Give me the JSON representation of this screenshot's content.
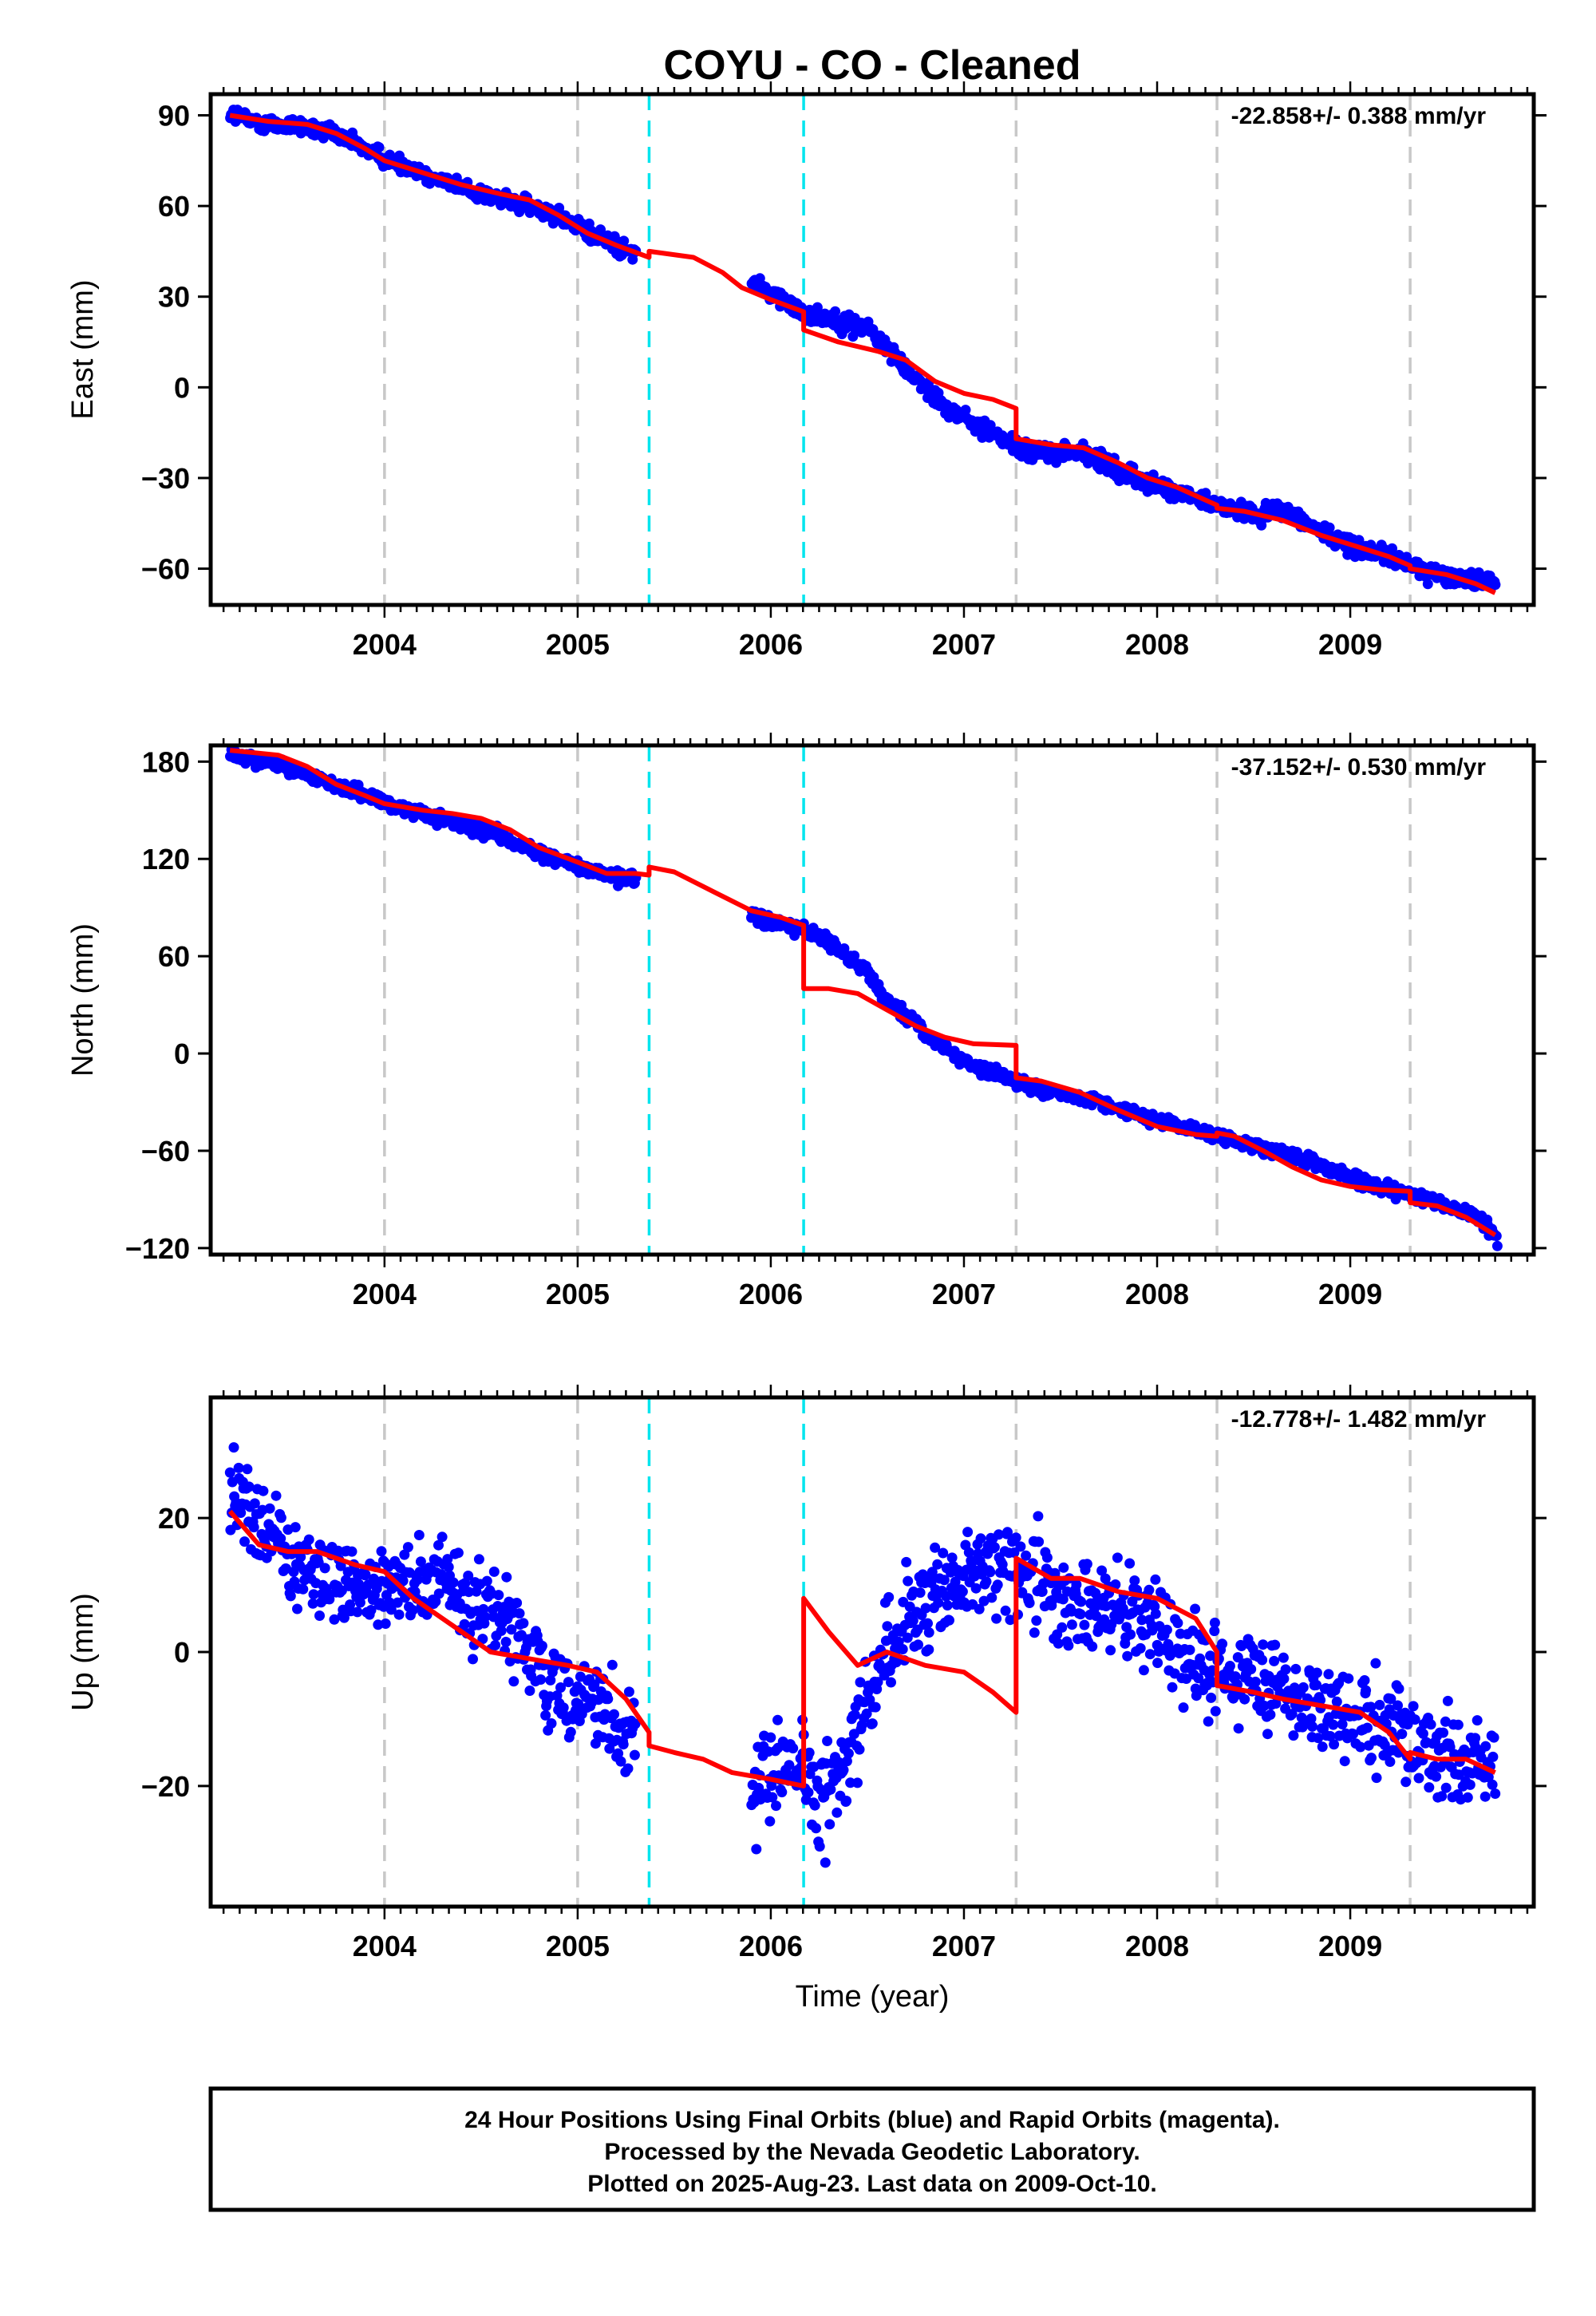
{
  "chart_data": {
    "title": "COYU  - CO - Cleaned",
    "type": "scatter",
    "xlabel": "Time (year)",
    "xlim": [
      2003.1,
      2009.95
    ],
    "x_ticks": [
      "2004",
      "2005",
      "2006",
      "2007",
      "2008",
      "2009"
    ],
    "grey_dashed_lines": [
      2004.0,
      2005.0,
      2007.27,
      2008.31,
      2009.31
    ],
    "cyan_dashed_lines": [
      2005.37,
      2006.17
    ],
    "colors": {
      "data": "#0000ff",
      "model": "#ff0000",
      "grey_line": "#c8c8c8",
      "cyan_line": "#00e5ee"
    },
    "panels": [
      {
        "ylabel": "East (mm)",
        "ylim": [
          -72,
          97
        ],
        "y_ticks": [
          "90",
          "60",
          "30",
          "0",
          "−30",
          "−60"
        ],
        "y_tick_values": [
          90,
          60,
          30,
          0,
          -30,
          -60
        ],
        "rate": "-22.858+/- 0.388 mm/yr",
        "data_segments": [
          {
            "x": [
              2003.2,
              2003.3,
              2003.45,
              2003.6,
              2003.8,
              2004.0,
              2004.2,
              2004.4,
              2004.6,
              2004.75,
              2004.9,
              2005.05,
              2005.2,
              2005.3
            ],
            "y": [
              91,
              88,
              87,
              86,
              82,
              76,
              71,
              66,
              62,
              60,
              57,
              51,
              47,
              44
            ],
            "noise": 2.0
          },
          {
            "x": [
              2005.9,
              2006.0,
              2006.1,
              2006.2,
              2006.35,
              2006.5,
              2006.6,
              2006.75,
              2006.9,
              2007.05,
              2007.2,
              2007.3,
              2007.45,
              2007.6,
              2007.75,
              2007.9,
              2008.05,
              2008.2,
              2008.35,
              2008.5,
              2008.65,
              2008.8,
              2008.95,
              2009.1,
              2009.25,
              2009.4,
              2009.55,
              2009.7,
              2009.75
            ],
            "y": [
              35,
              31,
              27,
              24,
              22,
              20,
              13,
              3,
              -6,
              -12,
              -17,
              -21,
              -22,
              -21,
              -26,
              -30,
              -34,
              -37,
              -40,
              -42,
              -40,
              -46,
              -51,
              -54,
              -57,
              -61,
              -63,
              -64,
              -66
            ],
            "noise": 2.0
          }
        ],
        "model": {
          "x": [
            2003.2,
            2003.4,
            2003.6,
            2003.75,
            2003.9,
            2004.0,
            2004.2,
            2004.4,
            2004.6,
            2004.75,
            2004.9,
            2005.05,
            2005.2,
            2005.37,
            2005.37,
            2005.6,
            2005.75,
            2005.85,
            2006.0,
            2006.17,
            2006.17,
            2006.35,
            2006.55,
            2006.7,
            2006.85,
            2007.0,
            2007.15,
            2007.27,
            2007.27,
            2007.45,
            2007.62,
            2007.8,
            2007.95,
            2008.1,
            2008.31,
            2008.31,
            2008.45,
            2008.65,
            2008.85,
            2009.05,
            2009.2,
            2009.31,
            2009.31,
            2009.5,
            2009.65,
            2009.75
          ],
          "y": [
            90,
            88,
            87,
            84,
            79,
            75,
            71,
            67,
            64,
            62,
            57,
            51,
            47,
            43,
            45,
            43,
            38,
            33,
            29,
            25,
            19,
            15,
            12,
            9,
            2,
            -2,
            -4,
            -7,
            -17,
            -19,
            -20,
            -25,
            -30,
            -33,
            -39,
            -40,
            -41,
            -44,
            -49,
            -53,
            -56,
            -59,
            -60,
            -62,
            -65,
            -68
          ]
        }
      },
      {
        "ylabel": "North (mm)",
        "ylim": [
          -124,
          190
        ],
        "y_ticks": [
          "180",
          "120",
          "60",
          "0",
          "−60",
          "−120"
        ],
        "y_tick_values": [
          180,
          120,
          60,
          0,
          -60,
          -120
        ],
        "rate": "-37.152+/- 0.530 mm/yr",
        "data_segments": [
          {
            "x": [
              2003.2,
              2003.35,
              2003.5,
              2003.65,
              2003.8,
              2004.0,
              2004.2,
              2004.4,
              2004.6,
              2004.8,
              2005.0,
              2005.15,
              2005.3
            ],
            "y": [
              184,
              181,
              177,
              170,
              163,
              155,
              147,
              141,
              134,
              124,
              115,
              110,
              107
            ],
            "noise": 2.8
          },
          {
            "x": [
              2005.9,
              2006.05,
              2006.2,
              2006.35,
              2006.5,
              2006.6,
              2006.75,
              2006.9,
              2007.05,
              2007.2,
              2007.35,
              2007.5,
              2007.7,
              2007.9,
              2008.1,
              2008.3,
              2008.5,
              2008.7,
              2008.9,
              2009.1,
              2009.3,
              2009.45,
              2009.6,
              2009.7,
              2009.76
            ],
            "y": [
              85,
              80,
              75,
              64,
              50,
              33,
              18,
              3,
              -8,
              -14,
              -20,
              -25,
              -30,
              -38,
              -44,
              -50,
              -57,
              -63,
              -72,
              -80,
              -87,
              -92,
              -98,
              -105,
              -114
            ],
            "noise": 2.8
          }
        ],
        "model": {
          "x": [
            2003.2,
            2003.45,
            2003.6,
            2003.75,
            2003.9,
            2004.0,
            2004.2,
            2004.35,
            2004.5,
            2004.65,
            2004.8,
            2005.0,
            2005.15,
            2005.3,
            2005.37,
            2005.37,
            2005.5,
            2005.7,
            2005.9,
            2006.05,
            2006.17,
            2006.17,
            2006.3,
            2006.45,
            2006.6,
            2006.75,
            2006.9,
            2007.05,
            2007.27,
            2007.27,
            2007.4,
            2007.6,
            2007.8,
            2008.0,
            2008.2,
            2008.31,
            2008.31,
            2008.4,
            2008.55,
            2008.7,
            2008.85,
            2009.0,
            2009.15,
            2009.31,
            2009.31,
            2009.45,
            2009.6,
            2009.75
          ],
          "y": [
            187,
            184,
            177,
            166,
            159,
            154,
            150,
            148,
            145,
            138,
            127,
            118,
            111,
            111,
            110,
            115,
            112,
            100,
            88,
            84,
            79,
            40,
            40,
            37,
            27,
            17,
            10,
            6,
            5,
            -15,
            -17,
            -24,
            -35,
            -45,
            -50,
            -51,
            -49,
            -51,
            -60,
            -70,
            -78,
            -82,
            -84,
            -85,
            -92,
            -94,
            -101,
            -112
          ]
        }
      },
      {
        "ylabel": "Up (mm)",
        "ylim": [
          -38,
          38
        ],
        "y_ticks": [
          "20",
          "0",
          "−20"
        ],
        "y_tick_values": [
          20,
          0,
          -20
        ],
        "rate": "-12.778+/- 1.482 mm/yr",
        "data_segments": [
          {
            "x": [
              2003.2,
              2003.35,
              2003.5,
              2003.7,
              2003.9,
              2004.1,
              2004.3,
              2004.5,
              2004.7,
              2004.9,
              2005.05,
              2005.2,
              2005.3
            ],
            "y": [
              25,
              20,
              14,
              11,
              8,
              10,
              11,
              7,
              2,
              -6,
              -8,
              -10,
              -13
            ],
            "noise": 4.5
          },
          {
            "x": [
              2005.9,
              2006.05,
              2006.17,
              2006.3,
              2006.45,
              2006.6,
              2006.8,
              2007.0,
              2007.2,
              2007.4,
              2007.6,
              2007.8,
              2008.0,
              2008.2,
              2008.4,
              2008.6,
              2008.8,
              2009.0,
              2009.2,
              2009.4,
              2009.6,
              2009.75
            ],
            "y": [
              -20,
              -19,
              -18,
              -22,
              -12,
              0,
              7,
              11,
              13,
              10,
              8,
              6,
              4,
              -2,
              -3,
              -5,
              -8,
              -9,
              -12,
              -15,
              -17,
              -18
            ],
            "noise": 5.0
          }
        ],
        "model": {
          "x": [
            2003.2,
            2003.35,
            2003.5,
            2003.65,
            2003.85,
            2004.0,
            2004.15,
            2004.35,
            2004.55,
            2004.75,
            2004.95,
            2005.1,
            2005.25,
            2005.37,
            2005.37,
            2005.5,
            2005.65,
            2005.8,
            2006.0,
            2006.17,
            2006.17,
            2006.3,
            2006.45,
            2006.6,
            2006.8,
            2007.0,
            2007.15,
            2007.27,
            2007.27,
            2007.45,
            2007.6,
            2007.8,
            2008.0,
            2008.2,
            2008.31,
            2008.31,
            2008.5,
            2008.65,
            2008.85,
            2009.05,
            2009.2,
            2009.31,
            2009.31,
            2009.45,
            2009.6,
            2009.75
          ],
          "y": [
            21,
            16,
            15,
            15,
            13,
            12,
            8,
            4,
            0,
            -1,
            -2,
            -3,
            -7,
            -12,
            -14,
            -15,
            -16,
            -18,
            -19,
            -20,
            8,
            3,
            -2,
            0,
            -2,
            -3,
            -6,
            -9,
            14,
            11,
            11,
            9,
            8,
            5,
            0,
            -5,
            -6,
            -7,
            -8,
            -9,
            -12,
            -16,
            -15,
            -16,
            -16,
            -18
          ]
        }
      }
    ]
  },
  "footer": {
    "line1": "24 Hour Positions Using Final Orbits (blue) and Rapid Orbits (magenta).",
    "line2": "Processed by the Nevada Geodetic Laboratory.",
    "line3": "Plotted on 2025-Aug-23. Last data on 2009-Oct-10."
  }
}
